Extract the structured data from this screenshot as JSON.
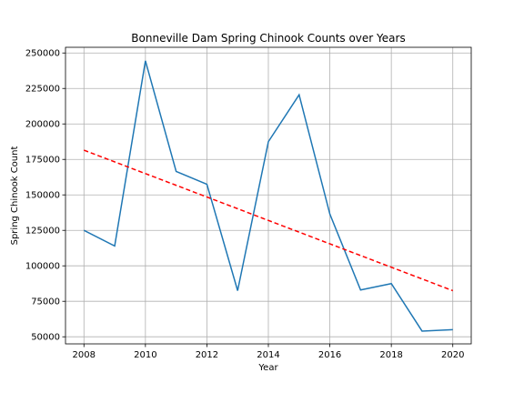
{
  "chart_data": {
    "type": "line",
    "title": "Bonneville Dam Spring Chinook Counts over Years",
    "xlabel": "Year",
    "ylabel": "Spring Chinook Count",
    "x": [
      2008,
      2009,
      2010,
      2011,
      2012,
      2013,
      2014,
      2015,
      2016,
      2017,
      2018,
      2019,
      2020
    ],
    "series": [
      {
        "values": [
          125000,
          114000,
          244500,
          166500,
          157500,
          82500,
          187500,
          220500,
          136500,
          83000,
          87500,
          54000,
          55000
        ],
        "color": "#1f77b4",
        "style": "solid"
      },
      {
        "values": [
          181500,
          82500
        ],
        "x": [
          2008,
          2020
        ],
        "color": "#ff0000",
        "style": "dashed"
      }
    ],
    "xlim": [
      2007.4,
      2020.6
    ],
    "ylim": [
      45000,
      254000
    ],
    "xticks": [
      2008,
      2010,
      2012,
      2014,
      2016,
      2018,
      2020
    ],
    "yticks": [
      50000,
      75000,
      100000,
      125000,
      150000,
      175000,
      200000,
      225000,
      250000
    ],
    "grid": true
  }
}
